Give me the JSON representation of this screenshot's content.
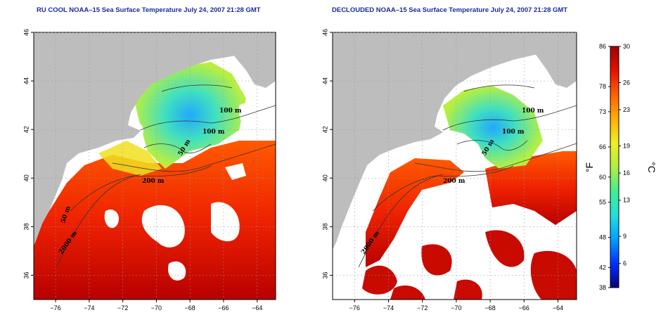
{
  "maps": [
    {
      "title": "RU COOL NOAA–15 Sea Surface Temperature July 24, 2007 21:28 GMT",
      "contour_labels": [
        "100 m",
        "100 m",
        "50 m",
        "200 m",
        "50 m",
        "2000 m"
      ]
    },
    {
      "title": "DECLOUDED NOAA–15 Sea Surface Temperature July 24, 2007 21:28 GMT",
      "contour_labels": [
        "100 m",
        "100 m",
        "50 m",
        "200 m",
        "2000 m"
      ]
    }
  ],
  "axes": {
    "x_ticks": [
      "−76",
      "−74",
      "−72",
      "−70",
      "−68",
      "−66",
      "−64"
    ],
    "y_ticks": [
      "46",
      "44",
      "42",
      "40",
      "38",
      "36"
    ],
    "lon_range": [
      -77.3,
      -62.9
    ],
    "lat_range": [
      35.0,
      46.0
    ]
  },
  "colorbar": {
    "fahrenheit_ticks": [
      "86",
      "78",
      "73",
      "66",
      "60",
      "55",
      "48",
      "42",
      "38"
    ],
    "celsius_ticks": [
      "30",
      "26",
      "23",
      "19",
      "16",
      "13",
      "9",
      "6"
    ],
    "unit_f": "°F",
    "unit_c": "°C",
    "colors": [
      "#0a0080",
      "#0030ff",
      "#00a0ff",
      "#20e0e0",
      "#40f090",
      "#b0f040",
      "#f0f020",
      "#ffb000",
      "#ff6000",
      "#e81000",
      "#a00000"
    ]
  },
  "colors": {
    "land": "#bdbdbd",
    "cloud": "#ffffff",
    "title": "#1f2a9c"
  }
}
